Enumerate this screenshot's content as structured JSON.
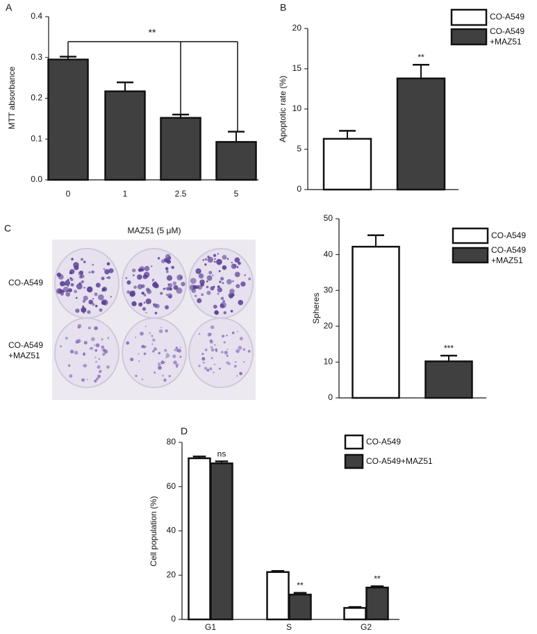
{
  "panel_labels": [
    "A",
    "B",
    "C",
    "D"
  ],
  "plate_image": {
    "title": "MAZ51 (5 μM)",
    "row_labels": [
      "CO-A549",
      "CO-A549\n+MAZ51"
    ]
  },
  "chart_data": [
    {
      "type": "bar",
      "y_label": "MTT absorbance",
      "categories": [
        "0",
        "1",
        "2.5",
        "5"
      ],
      "values": [
        0.295,
        0.217,
        0.152,
        0.093
      ],
      "errors": [
        0.007,
        0.022,
        0.008,
        0.025
      ],
      "color": "#404040",
      "annotation": "**",
      "ylim": [
        0,
        0.4
      ],
      "yticks": [
        {
          "value": 0,
          "label": "0.0"
        },
        0.1,
        0.2,
        0.3,
        0.4
      ],
      "grid": false
    },
    {
      "type": "bar",
      "y_label": "Apoptotic rate (%)",
      "series": [
        {
          "name": "CO-A549",
          "color": "#ffffff",
          "values": [
            6.3
          ],
          "errors": [
            1.0
          ]
        },
        {
          "name": "CO-A549\n+MAZ51",
          "color": "#404040",
          "values": [
            13.8
          ],
          "errors": [
            1.7
          ],
          "significance": [
            "**"
          ]
        }
      ],
      "ylim": [
        0,
        20
      ],
      "yticks": [
        0,
        5,
        10,
        15,
        20
      ],
      "grid": false
    },
    {
      "type": "bar",
      "y_label": "Spheres",
      "series": [
        {
          "name": "CO-A549",
          "color": "#ffffff",
          "values": [
            42.2
          ],
          "errors": [
            3.2
          ]
        },
        {
          "name": "CO-A549\n+MAZ51",
          "color": "#404040",
          "values": [
            10.2
          ],
          "errors": [
            1.6
          ],
          "significance": [
            "***"
          ]
        }
      ],
      "ylim": [
        0,
        50
      ],
      "yticks": [
        0,
        10,
        20,
        30,
        40,
        50
      ],
      "grid": false
    },
    {
      "type": "bar",
      "y_label": "Cell population (%)",
      "categories": [
        "G1",
        "S",
        "G2"
      ],
      "series": [
        {
          "name": "CO-A549",
          "color": "#ffffff",
          "values": [
            72.8,
            21.4,
            5.2
          ],
          "errors": [
            0.8,
            0.5,
            0.4
          ]
        },
        {
          "name": "CO-A549+MAZ51",
          "color": "#404040",
          "values": [
            70.5,
            11.2,
            14.4
          ],
          "errors": [
            0.9,
            0.8,
            0.6
          ],
          "significance": [
            "ns",
            "**",
            "**"
          ]
        }
      ],
      "ylim": [
        0,
        80
      ],
      "yticks": [
        0,
        20,
        40,
        60,
        80
      ],
      "grid": false
    }
  ]
}
